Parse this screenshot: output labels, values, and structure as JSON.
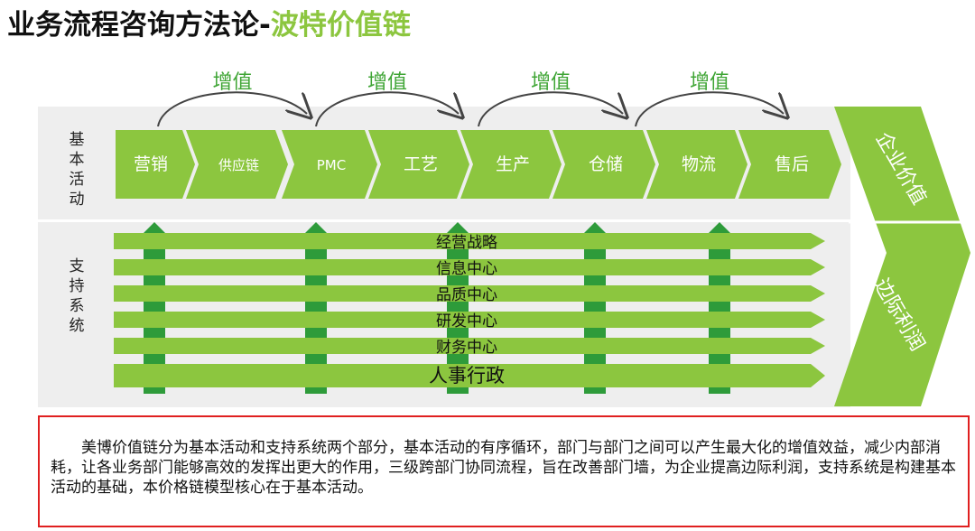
{
  "title": {
    "main": "业务流程咨询方法论-",
    "accent": "波特价值链"
  },
  "value_add_label": "增值",
  "primary_label": "基本活动",
  "support_label": "支持系统",
  "primary_activities": [
    "营销",
    "供应链",
    "PMC",
    "工艺",
    "生产",
    "仓储",
    "物流",
    "售后"
  ],
  "support_activities": [
    "经营战略",
    "信息中心",
    "品质中心",
    "研发中心",
    "财务中心",
    "人事行政"
  ],
  "right_arrow": {
    "top": "企业价值",
    "bottom": "边际利润"
  },
  "description": "美博价值链分为基本活动和支持系统两个部分，基本活动的有序循环，部门与部门之间可以产生最大化的增值效益，减少内部消耗，让各业务部门能够高效的发挥出更大的作用，三级跨部门协同流程，旨在改善部门墙，为企业提高边际利润，支持系统是构建基本活动的基础，本价格链模型核心在于基本活动。",
  "colors": {
    "green": "#8cc63f",
    "dark_green": "#2e9b3a",
    "panel": "#eeeeee",
    "text_red_border": "#e02020"
  }
}
